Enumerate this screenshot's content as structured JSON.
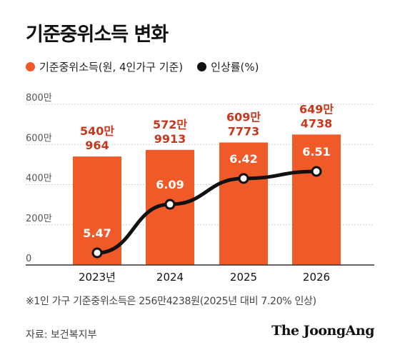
{
  "title": "기준중위소득 변화",
  "legend": {
    "bar_label": "기준중위소득(원, 4인가구 기준)",
    "line_label": "인상률(%)"
  },
  "colors": {
    "bar": "#F05A28",
    "bar_label": "#C8361C",
    "line": "#111111",
    "axis_text": "#555555",
    "grid": "#d0d0d0"
  },
  "chart_data": {
    "type": "bar",
    "categories": [
      "2023년",
      "2024",
      "2025",
      "2026"
    ],
    "y_ticks": [
      "0",
      "200만",
      "400만",
      "600만",
      "800만"
    ],
    "ylim": [
      0,
      8000000
    ],
    "series": [
      {
        "name": "기준중위소득(원, 4인가구 기준)",
        "type": "bar",
        "values": [
          5400964,
          5729913,
          6097773,
          6494738
        ],
        "labels": [
          [
            "540만",
            "964"
          ],
          [
            "572만",
            "9913"
          ],
          [
            "609만",
            "7773"
          ],
          [
            "649만",
            "4738"
          ]
        ]
      },
      {
        "name": "인상률(%)",
        "type": "line",
        "values": [
          5.47,
          6.09,
          6.42,
          6.51
        ],
        "labels": [
          "5.47",
          "6.09",
          "6.42",
          "6.51"
        ]
      }
    ]
  },
  "footnote": "※1인 가구 기준중위소득은 256만4238원(2025년 대비 7.20% 인상)",
  "source": "자료: 보건복지부",
  "brand": "The JoongAng"
}
